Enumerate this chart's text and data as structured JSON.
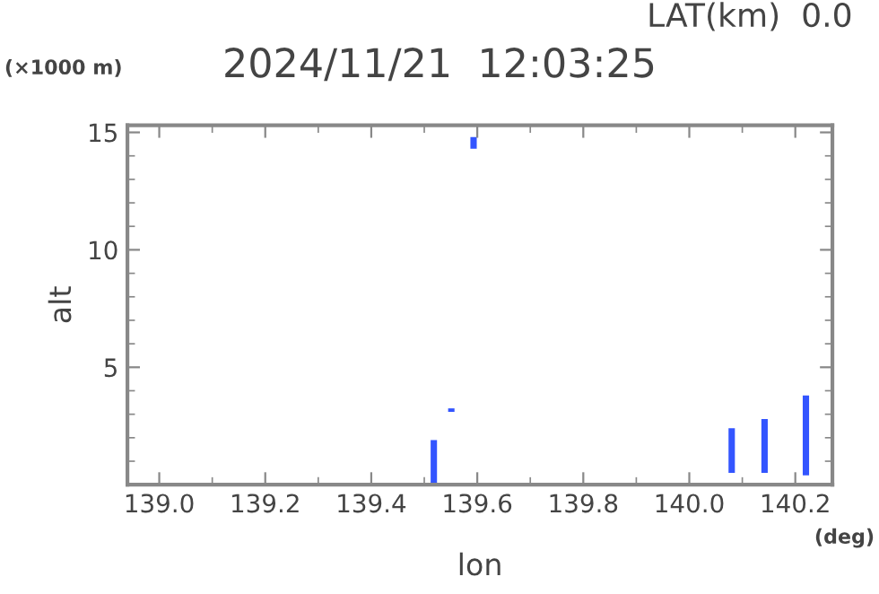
{
  "chart_data": {
    "type": "bar",
    "title": "2024/11/21  12:03:25",
    "subtitle": "LAT(km)  0.0",
    "xlabel": "lon",
    "ylabel": "alt",
    "annotations": [
      "(×1000 m)",
      "(deg)"
    ],
    "x": [
      139.518,
      139.551,
      139.593,
      140.08,
      140.142,
      140.22
    ],
    "base": [
      0,
      3.1,
      14.3,
      0.5,
      0.5,
      0.4
    ],
    "values": [
      1.9,
      0.15,
      0.5,
      1.9,
      2.3,
      3.4
    ],
    "color": "#3355ff",
    "xlim": [
      138.94,
      140.27
    ],
    "xticks": [
      {
        "value": 139.0,
        "label": "139.0"
      },
      {
        "value": 139.2,
        "label": "139.2"
      },
      {
        "value": 139.4,
        "label": "139.4"
      },
      {
        "value": 139.6,
        "label": "139.6"
      },
      {
        "value": 139.8,
        "label": "139.8"
      },
      {
        "value": 140.0,
        "label": "140.0"
      },
      {
        "value": 140.2,
        "label": "140.2"
      }
    ],
    "ylim": [
      0,
      15.3
    ],
    "yticks": [
      5,
      10,
      15
    ],
    "grid": false
  }
}
